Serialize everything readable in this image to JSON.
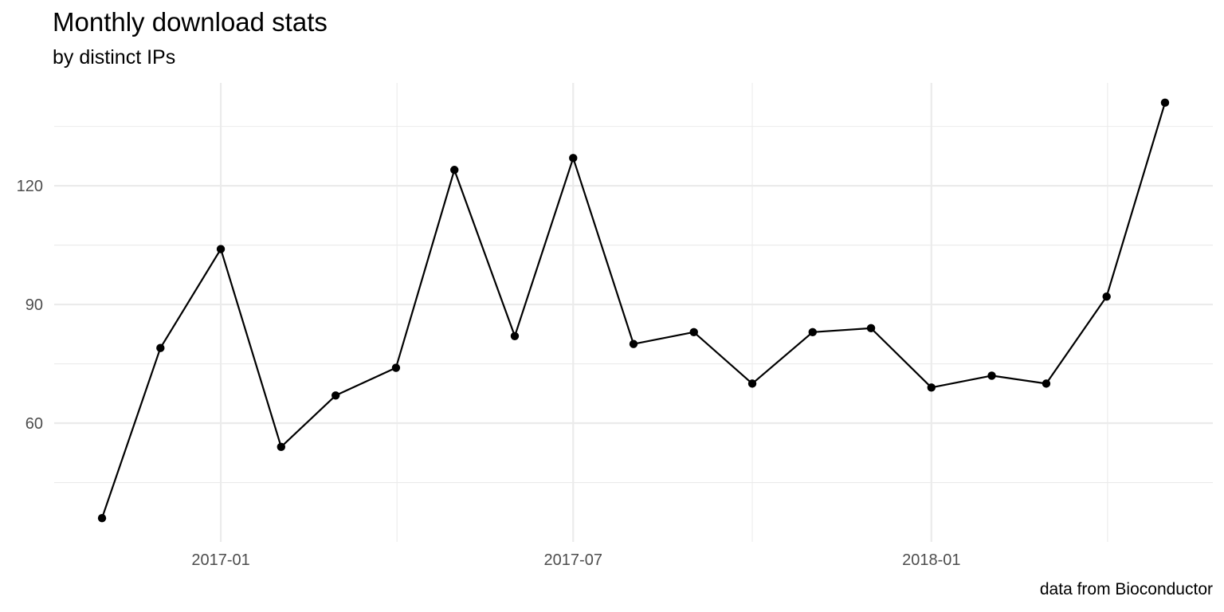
{
  "chart_data": {
    "type": "line",
    "title": "Monthly download stats",
    "subtitle": "by distinct IPs",
    "caption": "data from Bioconductor",
    "xlabel": "",
    "ylabel": "",
    "x": [
      "2016-11",
      "2016-12",
      "2017-01",
      "2017-02",
      "2017-03",
      "2017-04",
      "2017-05",
      "2017-06",
      "2017-07",
      "2017-08",
      "2017-09",
      "2017-10",
      "2017-11",
      "2017-12",
      "2018-01",
      "2018-02",
      "2018-03",
      "2018-04",
      "2018-05"
    ],
    "series": [
      {
        "values": [
          36,
          79,
          104,
          54,
          67,
          74,
          124,
          82,
          127,
          80,
          83,
          70,
          83,
          84,
          69,
          72,
          70,
          92,
          141
        ]
      }
    ],
    "x_ticks": [
      "2017-01",
      "2017-07",
      "2018-01"
    ],
    "y_ticks": [
      60,
      90,
      120
    ],
    "ylim": [
      30,
      146
    ],
    "grid": true,
    "legend": "none",
    "line_color": "#000000",
    "point_color": "#000000",
    "grid_color": "#ebebeb"
  }
}
